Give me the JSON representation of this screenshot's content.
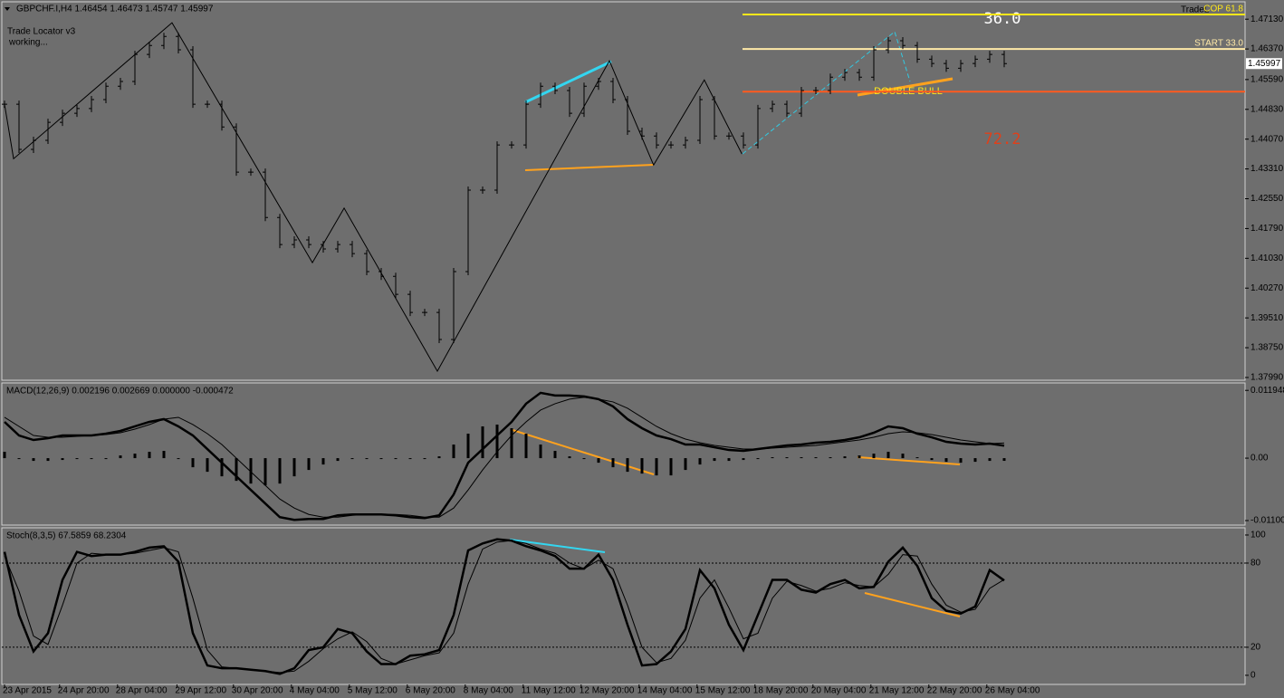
{
  "chart_data": [
    {
      "type": "ohlc",
      "title": "GBPCHF.I,H4  1.46454 1.46473 1.45747 1.45997",
      "values": [
        1.4496,
        1.4381,
        1.4404,
        1.445,
        1.4473,
        1.4485,
        1.4508,
        1.4542,
        1.4554,
        1.4623,
        1.4646,
        1.4669,
        1.4635,
        1.4496,
        1.4496,
        1.4438,
        1.4323,
        1.4323,
        1.4207,
        1.4138,
        1.415,
        1.4138,
        1.4127,
        1.4138,
        1.4115,
        1.4069,
        1.4057,
        1.4011,
        1.3965,
        1.3965,
        1.3896,
        1.4069,
        1.4277,
        1.4277,
        1.4392,
        1.4392,
        1.4496,
        1.4542,
        1.4531,
        1.4473,
        1.4542,
        1.4554,
        1.4508,
        1.4427,
        1.4415,
        1.4392,
        1.4392,
        1.4404,
        1.4508,
        1.4415,
        1.4415,
        1.4392,
        1.4485,
        1.4496,
        1.4473,
        1.4531,
        1.4531,
        1.4565,
        1.4577,
        1.4565,
        1.4635,
        1.4658,
        1.4646,
        1.4611,
        1.46,
        1.4588,
        1.46,
        1.4611,
        1.4623,
        1.45997
      ],
      "color": "#000000",
      "zigzag": {
        "x": [
          0,
          0.625,
          11.56,
          21.25,
          23.44,
          29.875,
          41.75,
          44.8,
          48.3,
          50.9
        ],
        "values": [
          1.4496,
          1.4357,
          1.4704,
          1.4092,
          1.4231,
          1.3815,
          1.4607,
          1.4341,
          1.4558,
          1.4369
        ],
        "color": "#000000"
      },
      "levels": [
        {
          "name": "COP 61.8",
          "value": 1.4725,
          "color": "#ffe81a"
        },
        {
          "name": "START 33.0",
          "value": 1.4637,
          "color": "#ffe9a8"
        },
        {
          "value": 1.4528,
          "color": "#ff5a1e"
        }
      ],
      "annotations": [
        "Trade Locator v3",
        "working...",
        "TradeL",
        "36.0",
        "72.2",
        "DOUBLE BULL"
      ],
      "last_price": 1.45997,
      "ylim": [
        1.3792,
        1.4755
      ],
      "yticks": [
        {
          "value": 1.4713,
          "label": "1.47130"
        },
        {
          "value": 1.4637,
          "label": "1.46370"
        },
        {
          "value": 1.4559,
          "label": "1.45590"
        },
        {
          "value": 1.4483,
          "label": "1.44830"
        },
        {
          "value": 1.4407,
          "label": "1.44070"
        },
        {
          "value": 1.4331,
          "label": "1.43310"
        },
        {
          "value": 1.4255,
          "label": "1.42550"
        },
        {
          "value": 1.4179,
          "label": "1.41790"
        },
        {
          "value": 1.4103,
          "label": "1.41030"
        },
        {
          "value": 1.4027,
          "label": "1.40270"
        },
        {
          "value": 1.3951,
          "label": "1.39510"
        },
        {
          "value": 1.3875,
          "label": "1.38750"
        },
        {
          "value": 1.3799,
          "label": "1.37990"
        }
      ]
    },
    {
      "type": "macd",
      "title": "MACD(12,26,9) 0.002196 0.002669 0.000000 -0.000472",
      "series": [
        {
          "name": "MACD",
          "color": "#000000",
          "values": [
            0.0064,
            0.004,
            0.0032,
            0.00352,
            0.004,
            0.004,
            0.004,
            0.00432,
            0.0048,
            0.0056,
            0.0064,
            0.00688,
            0.0056,
            0.004,
            0.0016,
            -0.0008,
            -0.0032,
            -0.0056,
            -0.008,
            -0.0104,
            -0.01088,
            -0.01072,
            -0.01072,
            -0.01008,
            -0.00992,
            -0.00992,
            -0.00992,
            -0.01008,
            -0.0104,
            -0.01056,
            -0.01008,
            -0.0064,
            -0.0008,
            0.0016,
            0.004,
            0.0064,
            0.0096,
            0.01152,
            0.01104,
            0.01104,
            0.01088,
            0.0104,
            0.00912,
            0.00688,
            0.00528,
            0.004,
            0.00336,
            0.0024,
            0.0024,
            0.00192,
            0.00144,
            0.00128,
            0.0016,
            0.00192,
            0.00224,
            0.0024,
            0.00272,
            0.00288,
            0.0032,
            0.00368,
            0.00448,
            0.0056,
            0.00528,
            0.00432,
            0.00368,
            0.00288,
            0.00256,
            0.0024,
            0.00256,
            0.002196
          ]
        },
        {
          "name": "Signal",
          "color": "#000000",
          "values": [
            0.0072,
            0.0056,
            0.004,
            0.00368,
            0.00368,
            0.00384,
            0.004,
            0.00416,
            0.00448,
            0.00512,
            0.00592,
            0.00688,
            0.0072,
            0.00592,
            0.00432,
            0.0024,
            0,
            -0.0024,
            -0.0048,
            -0.0072,
            -0.0088,
            -0.00992,
            -0.0104,
            -0.0104,
            -0.01008,
            -0.00992,
            -0.00992,
            -0.00992,
            -0.01008,
            -0.0104,
            -0.0104,
            -0.0088,
            -0.0056,
            -0.00208,
            0.00112,
            0.004,
            0.0064,
            0.00848,
            0.0096,
            0.0104,
            0.01072,
            0.0104,
            0.00992,
            0.0088,
            0.0072,
            0.0056,
            0.00432,
            0.00336,
            0.00272,
            0.00224,
            0.00192,
            0.0016,
            0.0016,
            0.00176,
            0.00192,
            0.00208,
            0.00224,
            0.00256,
            0.00288,
            0.0032,
            0.00368,
            0.00432,
            0.00464,
            0.00448,
            0.00416,
            0.00368,
            0.0032,
            0.00288,
            0.00256,
            0.002669
          ]
        }
      ],
      "histogram": [
        0.00112,
        0,
        -0.00048,
        -0.00048,
        -0.00032,
        -0.00016,
        0,
        0,
        0.00048,
        0.0008,
        0.00112,
        0.00128,
        0,
        -0.0016,
        -0.0024,
        -0.0032,
        -0.004,
        -0.00448,
        -0.0048,
        -0.00448,
        -0.0032,
        -0.00208,
        -0.00112,
        -0.00048,
        -0.00016,
        0,
        0,
        0,
        0,
        0,
        0.00032,
        0.0024,
        0.00432,
        0.0056,
        0.00592,
        0.00528,
        0.00432,
        0.0024,
        0.00128,
        0.00032,
        0,
        -0.0008,
        -0.0016,
        -0.0024,
        -0.00272,
        -0.00304,
        -0.00304,
        -0.00208,
        -0.00112,
        -0.00048,
        -0.00048,
        -0.00032,
        0,
        0.00016,
        0.00016,
        0.00016,
        0.00016,
        0.00016,
        0.00032,
        0.00048,
        0.0008,
        0.00112,
        0.0008,
        0.00016,
        -0.00032,
        -0.00064,
        -0.0008,
        -0.00064,
        -0.00048,
        -0.000472
      ],
      "ylim": [
        -0.0118,
        0.0131
      ],
      "yticks": [
        0.011948,
        {
          "value": 0,
          "label": "0.00"
        },
        -0.011002
      ]
    },
    {
      "type": "line",
      "title": "Stoch(8,3,5) 67.5859 68.2304",
      "series": [
        {
          "name": "Main",
          "color": "#000000",
          "values": [
            88,
            43,
            17,
            30,
            68,
            88,
            85,
            86,
            86,
            88,
            91,
            92,
            81,
            30,
            7,
            5,
            5,
            4,
            3,
            1,
            5,
            18,
            20,
            33,
            30,
            17,
            8,
            8,
            14,
            15,
            18,
            43,
            89,
            94,
            97,
            96,
            92,
            89,
            85,
            76,
            76,
            86,
            68,
            36,
            7,
            8,
            17,
            33,
            75,
            62,
            36,
            18,
            43,
            68,
            68,
            61,
            59,
            65,
            68,
            62,
            63,
            81,
            91,
            78,
            55,
            46,
            44,
            49,
            75,
            67.5859
          ]
        },
        {
          "name": "Signal",
          "color": "#000000",
          "values": [
            85,
            60,
            28,
            22,
            50,
            80,
            87,
            86,
            86,
            87,
            89,
            91,
            88,
            55,
            18,
            6,
            5,
            4,
            3,
            2,
            3,
            10,
            19,
            26,
            31,
            24,
            12,
            8,
            11,
            14,
            16,
            30,
            65,
            90,
            95,
            96,
            94,
            90,
            87,
            80,
            76,
            82,
            76,
            50,
            20,
            9,
            12,
            25,
            55,
            68,
            48,
            26,
            30,
            55,
            67,
            64,
            60,
            62,
            66,
            64,
            63,
            72,
            86,
            85,
            65,
            50,
            45,
            47,
            62,
            68.2304
          ]
        }
      ],
      "levels": [
        80,
        20
      ],
      "ylim": [
        -6.5,
        104.5
      ],
      "yticks": [
        100,
        80,
        20,
        0
      ],
      "xticks": [
        {
          "value": 0,
          "label": "23 Apr 2015"
        },
        {
          "value": 3.8,
          "label": "24 Apr 20:00"
        },
        {
          "value": 7.8,
          "label": "28 Apr 04:00"
        },
        {
          "value": 11.9,
          "label": "29 Apr 12:00"
        },
        {
          "value": 15.8,
          "label": "30 Apr 20:00"
        },
        {
          "value": 19.8,
          "label": "4 May 04:00"
        },
        {
          "value": 23.8,
          "label": "5 May 12:00"
        },
        {
          "value": 27.8,
          "label": "6 May 20:00"
        },
        {
          "value": 31.8,
          "label": "8 May 04:00"
        },
        {
          "value": 35.8,
          "label": "11 May 12:00"
        },
        {
          "value": 39.8,
          "label": "12 May 20:00"
        },
        {
          "value": 43.8,
          "label": "14 May 04:00"
        },
        {
          "value": 47.8,
          "label": "15 May 12:00"
        },
        {
          "value": 51.8,
          "label": "18 May 20:00"
        },
        {
          "value": 55.8,
          "label": "20 May 04:00"
        },
        {
          "value": 59.8,
          "label": "21 May 12:00"
        },
        {
          "value": 63.8,
          "label": "22 May 20:00"
        },
        {
          "value": 67.8,
          "label": "26 May 04:00"
        }
      ]
    }
  ]
}
